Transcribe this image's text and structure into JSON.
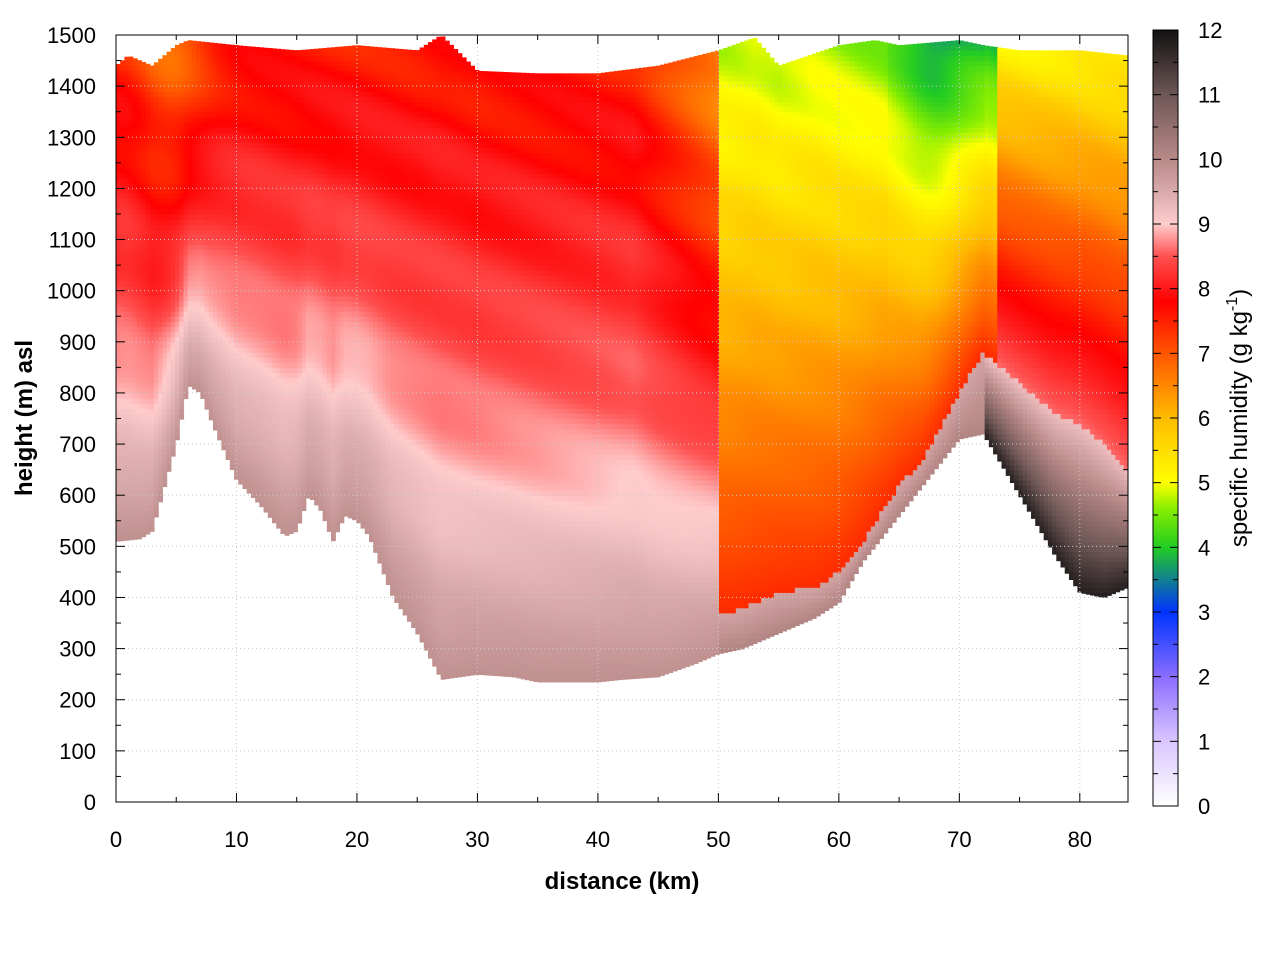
{
  "chart_data": {
    "type": "heatmap",
    "title": "",
    "xlabel": "distance (km)",
    "ylabel": "height (m) asl",
    "xlim": [
      0,
      84
    ],
    "ylim": [
      0,
      1500
    ],
    "x_ticks": [
      0,
      10,
      20,
      30,
      40,
      50,
      60,
      70,
      80
    ],
    "y_ticks": [
      0,
      100,
      200,
      300,
      400,
      500,
      600,
      700,
      800,
      900,
      1000,
      1100,
      1200,
      1300,
      1400,
      1500
    ],
    "grid": true,
    "colorbar": {
      "label": "specific humidity (g kg",
      "label_superscript": "-1",
      "label_suffix": ")",
      "range": [
        0,
        12
      ],
      "ticks": [
        0,
        1,
        2,
        3,
        4,
        5,
        6,
        7,
        8,
        9,
        10,
        11,
        12
      ],
      "stops": [
        {
          "value": 0,
          "color": "#ffffff"
        },
        {
          "value": 1,
          "color": "#d9c6ff"
        },
        {
          "value": 2,
          "color": "#8a6cff"
        },
        {
          "value": 3,
          "color": "#0033ff"
        },
        {
          "value": 4,
          "color": "#22cc22"
        },
        {
          "value": 4.6,
          "color": "#88ee00"
        },
        {
          "value": 5,
          "color": "#ffff00"
        },
        {
          "value": 6,
          "color": "#ffbb00"
        },
        {
          "value": 7,
          "color": "#ff5500"
        },
        {
          "value": 7.8,
          "color": "#ff0000"
        },
        {
          "value": 8.5,
          "color": "#ff5050"
        },
        {
          "value": 9,
          "color": "#ffcccc"
        },
        {
          "value": 9.5,
          "color": "#d9aaaa"
        },
        {
          "value": 10,
          "color": "#b88a88"
        },
        {
          "value": 11,
          "color": "#6e5656"
        },
        {
          "value": 12,
          "color": "#111111"
        }
      ]
    },
    "terrain_top_m": {
      "x": [
        0,
        2,
        3,
        5,
        6,
        7,
        8,
        10,
        12,
        14,
        15,
        16,
        17,
        18,
        19,
        20,
        21,
        23,
        25,
        27,
        30,
        33,
        35,
        40,
        42,
        45,
        48,
        50,
        52,
        55,
        58,
        60,
        62,
        65,
        67,
        70,
        72,
        74,
        76,
        78,
        80,
        82,
        84
      ],
      "y": [
        510,
        515,
        530,
        700,
        815,
        800,
        740,
        630,
        580,
        520,
        530,
        600,
        570,
        510,
        560,
        550,
        520,
        400,
        330,
        240,
        250,
        245,
        235,
        235,
        240,
        245,
        270,
        290,
        300,
        330,
        360,
        390,
        470,
        560,
        620,
        710,
        720,
        640,
        560,
        480,
        410,
        400,
        420
      ]
    },
    "data_top_m": {
      "x": [
        0,
        1,
        3,
        5,
        6,
        10,
        15,
        20,
        25,
        27,
        30,
        35,
        40,
        45,
        50,
        53,
        55,
        60,
        63,
        65,
        70,
        72,
        75,
        80,
        84
      ],
      "y": [
        1440,
        1460,
        1440,
        1480,
        1490,
        1480,
        1470,
        1480,
        1470,
        1500,
        1430,
        1425,
        1425,
        1440,
        1470,
        1495,
        1440,
        1480,
        1490,
        1480,
        1490,
        1480,
        1470,
        1470,
        1460
      ]
    },
    "interface_m": {
      "x": [
        51,
        52,
        55,
        58,
        60,
        62,
        65,
        67,
        70,
        72,
        74,
        76,
        78,
        80,
        82,
        84
      ],
      "y": [
        370,
        380,
        410,
        420,
        450,
        510,
        620,
        670,
        800,
        880,
        840,
        800,
        760,
        740,
        700,
        650
      ]
    },
    "regions": [
      {
        "x_from": 0,
        "x_to": 50,
        "low_value": 9.9,
        "mid_value": 8.6,
        "high_value": 7.6
      },
      {
        "x_from": 50,
        "x_to": 73,
        "value_at_surface": 7.2,
        "value_aloft": 5.0
      },
      {
        "x_from": 73,
        "x_to": 84,
        "value_at_surface": 11.2,
        "value_aloft": 5.3
      }
    ]
  }
}
